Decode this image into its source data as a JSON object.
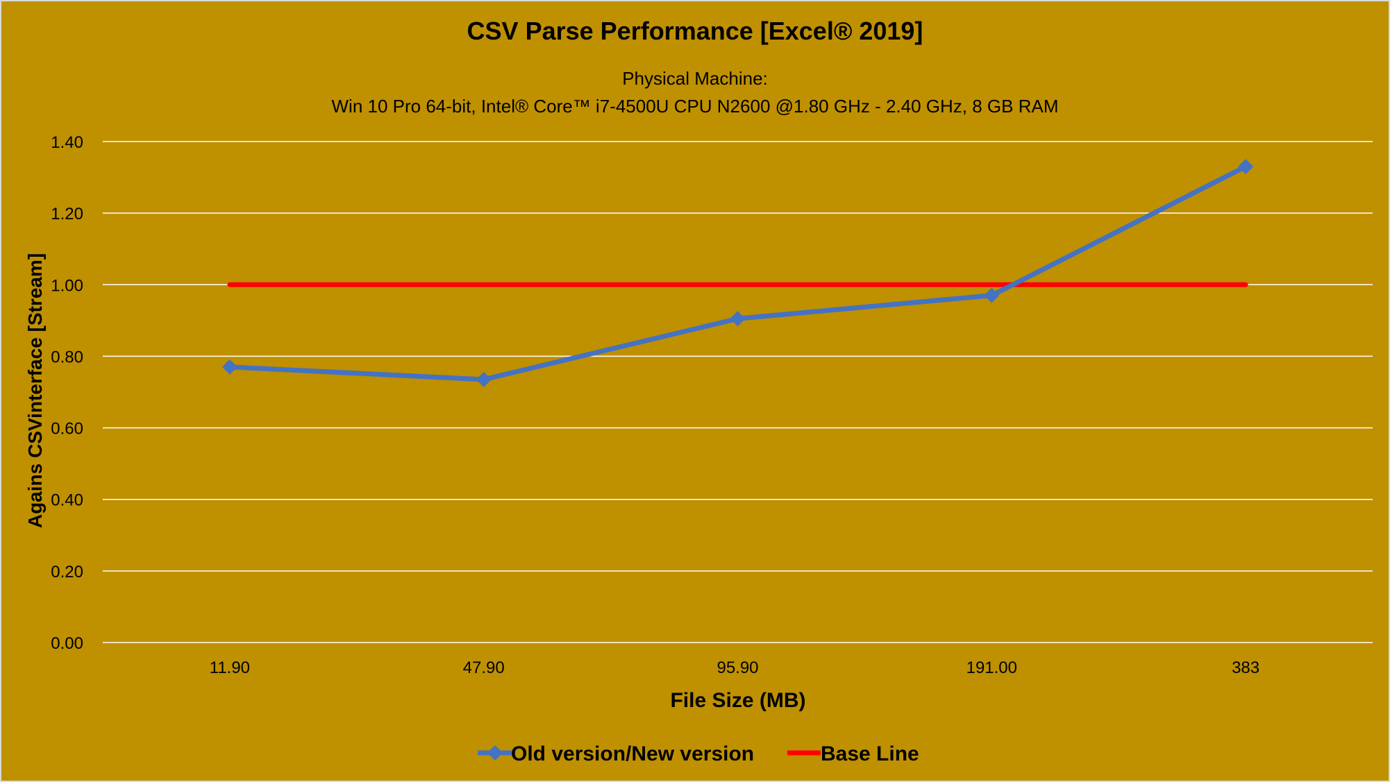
{
  "chart_data": {
    "type": "line",
    "title": "CSV Parse Performance [Excel® 2019]",
    "subtitle": [
      "Physical Machine:",
      "Win 10 Pro 64-bit, Intel® Core™ i7-4500U CPU N2600 @1.80 GHz - 2.40 GHz, 8 GB RAM"
    ],
    "xlabel": "File Size (MB)",
    "ylabel": "Agains CSVinterface [Stream]",
    "categories": [
      "11.90",
      "47.90",
      "95.90",
      "191.00",
      "383"
    ],
    "ylim": [
      0,
      1.4
    ],
    "yticks": [
      "0.00",
      "0.20",
      "0.40",
      "0.60",
      "0.80",
      "1.00",
      "1.20",
      "1.40"
    ],
    "grid": true,
    "legend_position": "bottom",
    "background_color": "#BF9000",
    "series": [
      {
        "name": "Old version/New version",
        "values": [
          0.77,
          0.735,
          0.905,
          0.97,
          1.33
        ],
        "color": "#4472C4",
        "marker": "diamond"
      },
      {
        "name": "Base Line",
        "values": [
          1.0,
          1.0,
          1.0,
          1.0,
          1.0
        ],
        "color": "#FF0000",
        "marker": "none"
      }
    ]
  }
}
